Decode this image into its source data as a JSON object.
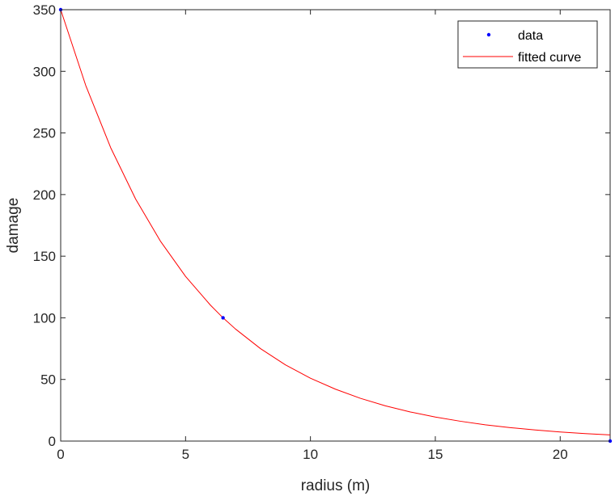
{
  "chart_data": {
    "type": "line",
    "title": "",
    "xlabel": "radius (m)",
    "ylabel": "damage",
    "xlim": [
      0,
      22
    ],
    "ylim": [
      0,
      350
    ],
    "x_ticks": [
      0,
      5,
      10,
      15,
      20
    ],
    "x_tick_labels": [
      "0",
      "5",
      "10",
      "15",
      "20"
    ],
    "y_ticks": [
      0,
      50,
      100,
      150,
      200,
      250,
      300,
      350
    ],
    "y_tick_labels": [
      "0",
      "50",
      "100",
      "150",
      "200",
      "250",
      "300",
      "350"
    ],
    "grid": false,
    "legend_position": "top-right",
    "series": [
      {
        "name": "data",
        "kind": "scatter",
        "color": "#0000ff",
        "x": [
          0,
          6.5,
          22
        ],
        "y": [
          350,
          100,
          0
        ]
      },
      {
        "name": "fitted curve",
        "kind": "line",
        "color": "#ff0000",
        "x": [
          0,
          1,
          2,
          3,
          4,
          5,
          6,
          6.5,
          7,
          8,
          9,
          10,
          11,
          12,
          13,
          14,
          15,
          16,
          17,
          18,
          19,
          20,
          21,
          22
        ],
        "y": [
          350,
          288.7,
          238.1,
          196.4,
          162.0,
          133.6,
          110.2,
          100.0,
          90.9,
          75.0,
          61.8,
          51.0,
          42.1,
          34.7,
          28.6,
          23.6,
          19.5,
          16.1,
          13.2,
          10.9,
          9.0,
          7.4,
          6.1,
          5.0
        ]
      }
    ]
  }
}
